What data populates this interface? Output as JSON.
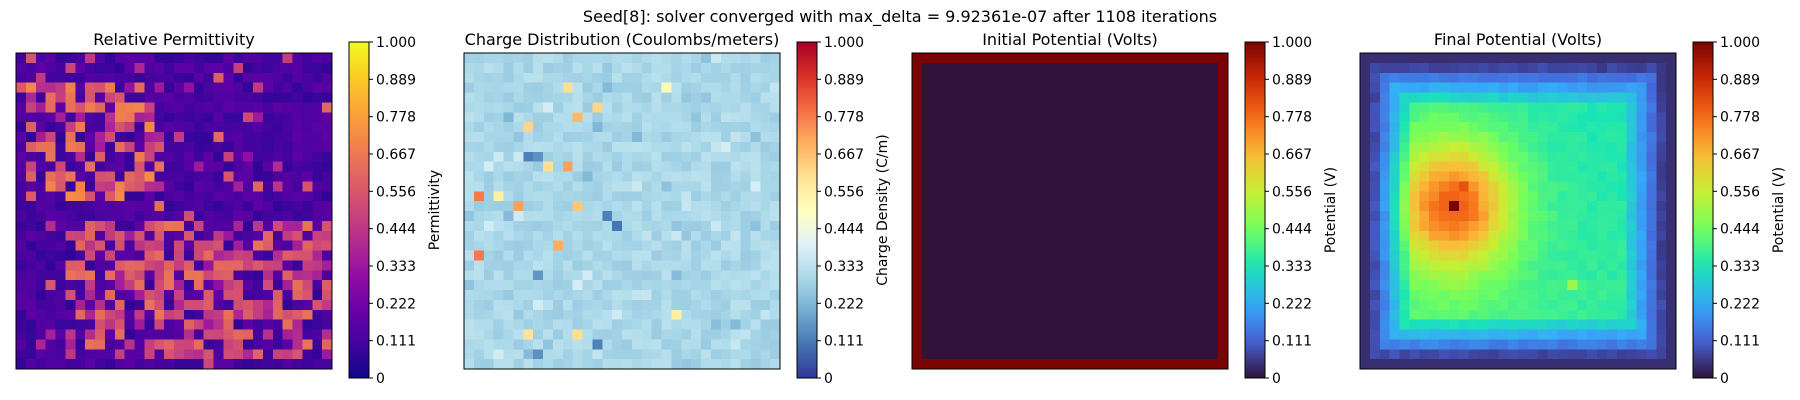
{
  "suptitle": "Seed[8]: solver converged with max_delta = 9.92361e-07 after 1108 iterations",
  "chart_data": [
    {
      "type": "heatmap",
      "title": "Relative Permittivity",
      "colormap": "plasma",
      "grid_size": [
        32,
        32
      ],
      "pattern": "sparse-clusters",
      "colorbar": {
        "label": "Permittivity",
        "range": [
          0,
          1
        ],
        "ticks": [
          "0",
          "0.111",
          "0.222",
          "0.333",
          "0.444",
          "0.556",
          "0.667",
          "0.778",
          "0.889",
          "1.000"
        ]
      },
      "background_value": 0.07,
      "hotspots": [
        {
          "rows": [
            3,
            14
          ],
          "cols": [
            1,
            14
          ],
          "value": 0.62
        },
        {
          "rows": [
            17,
            30
          ],
          "cols": [
            5,
            31
          ],
          "value": 0.55
        }
      ]
    },
    {
      "type": "heatmap",
      "title": "Charge Distribution (Coulombs/meters)",
      "colormap": "RdYlBu_r",
      "grid_size": [
        32,
        32
      ],
      "pattern": "sparse-charges",
      "colorbar": {
        "label": "Charge Density (C/m)",
        "range": [
          0,
          1
        ],
        "ticks": [
          "0",
          "0.111",
          "0.222",
          "0.333",
          "0.444",
          "0.556",
          "0.667",
          "0.778",
          "0.889",
          "1.000"
        ]
      },
      "background_value": 0.3,
      "point_charges": [
        {
          "row": 3,
          "col": 20,
          "value": 0.52
        },
        {
          "row": 3,
          "col": 10,
          "value": 0.6
        },
        {
          "row": 7,
          "col": 6,
          "value": 0.62
        },
        {
          "row": 6,
          "col": 11,
          "value": 0.68
        },
        {
          "row": 5,
          "col": 13,
          "value": 0.62
        },
        {
          "row": 10,
          "col": 6,
          "value": 0.12
        },
        {
          "row": 10,
          "col": 7,
          "value": 0.15
        },
        {
          "row": 11,
          "col": 10,
          "value": 0.72
        },
        {
          "row": 11,
          "col": 8,
          "value": 0.6
        },
        {
          "row": 14,
          "col": 1,
          "value": 0.78
        },
        {
          "row": 14,
          "col": 3,
          "value": 0.55
        },
        {
          "row": 15,
          "col": 5,
          "value": 0.72
        },
        {
          "row": 15,
          "col": 11,
          "value": 0.65
        },
        {
          "row": 16,
          "col": 14,
          "value": 0.12
        },
        {
          "row": 17,
          "col": 15,
          "value": 0.1
        },
        {
          "row": 19,
          "col": 9,
          "value": 0.7
        },
        {
          "row": 20,
          "col": 1,
          "value": 0.78
        },
        {
          "row": 26,
          "col": 21,
          "value": 0.55
        },
        {
          "row": 28,
          "col": 6,
          "value": 0.58
        },
        {
          "row": 28,
          "col": 11,
          "value": 0.6
        },
        {
          "row": 29,
          "col": 13,
          "value": 0.12
        },
        {
          "row": 30,
          "col": 7,
          "value": 0.15
        },
        {
          "row": 9,
          "col": 26,
          "value": 0.38
        },
        {
          "row": 22,
          "col": 7,
          "value": 0.16
        }
      ]
    },
    {
      "type": "heatmap",
      "title": "Initial Potential (Volts)",
      "colormap": "turbo",
      "grid_size": [
        32,
        32
      ],
      "pattern": "boundary",
      "colorbar": {
        "label": "Potential (V)",
        "range": [
          0,
          1
        ],
        "ticks": [
          "0",
          "0.111",
          "0.222",
          "0.333",
          "0.444",
          "0.556",
          "0.667",
          "0.778",
          "0.889",
          "1.000"
        ]
      },
      "boundary_value": 1.0,
      "interior_value": 0.0
    },
    {
      "type": "heatmap",
      "title": "Final Potential (Volts)",
      "colormap": "turbo",
      "grid_size": [
        32,
        32
      ],
      "pattern": "solution",
      "colorbar": {
        "label": "Potential (V)",
        "range": [
          0,
          1
        ],
        "ticks": [
          "0",
          "0.111",
          "0.222",
          "0.333",
          "0.444",
          "0.556",
          "0.667",
          "0.778",
          "0.889",
          "1.000"
        ]
      },
      "peak": {
        "row": 15,
        "col": 9,
        "value": 1.0
      },
      "plateau_value": 0.55,
      "secondary_spot": {
        "row": 23,
        "col": 21,
        "value": 0.5
      }
    }
  ]
}
